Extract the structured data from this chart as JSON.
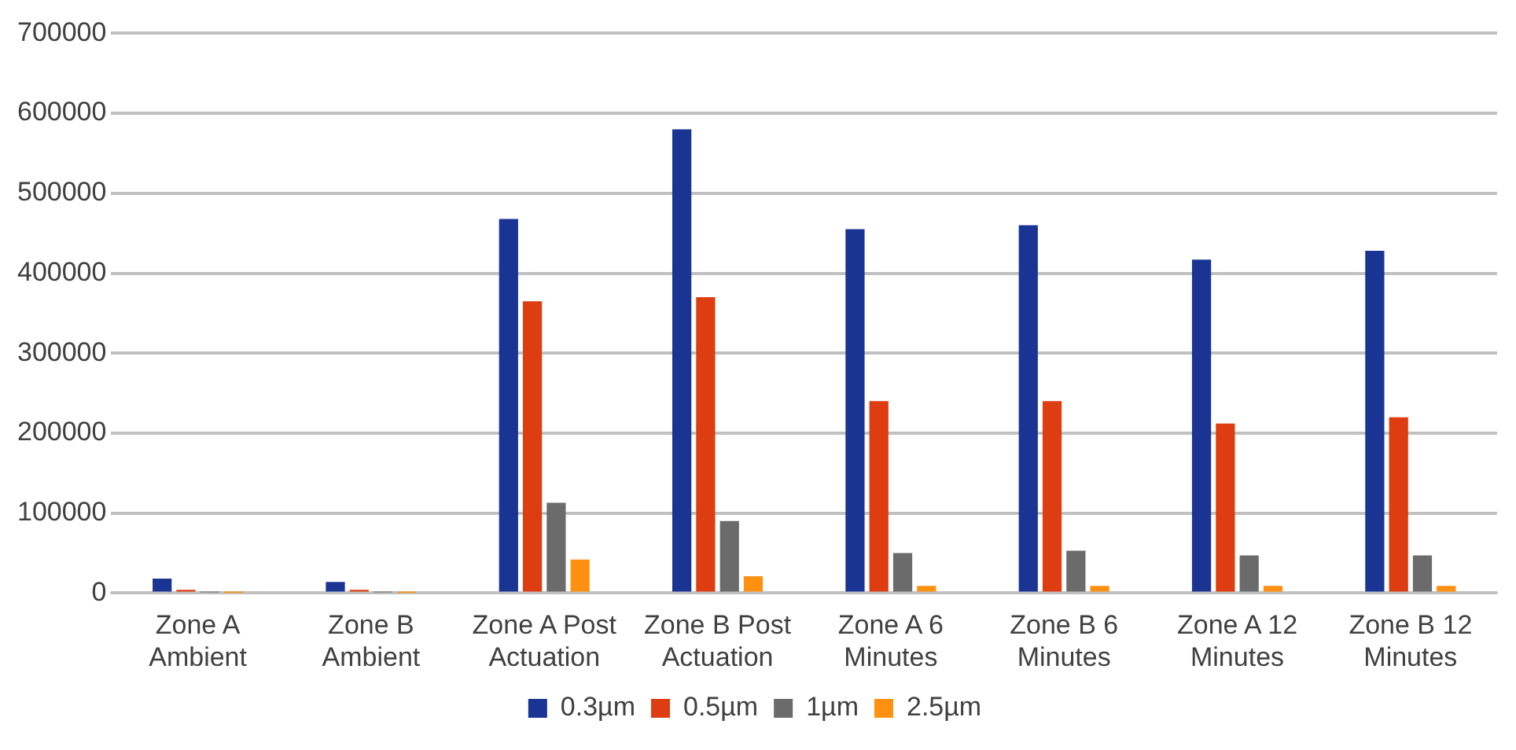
{
  "chart_data": {
    "type": "bar",
    "categories": [
      "Zone A Ambient",
      "Zone B Ambient",
      "Zone A Post Actuation",
      "Zone B Post Actuation",
      "Zone A 6 Minutes",
      "Zone B 6 Minutes",
      "Zone A 12 Minutes",
      "Zone B 12 Minutes"
    ],
    "series": [
      {
        "name": "0.3µm",
        "color": "#1a3494",
        "values": [
          18000,
          14000,
          468000,
          580000,
          455000,
          460000,
          417000,
          428000
        ]
      },
      {
        "name": "0.5µm",
        "color": "#dd3d11",
        "values": [
          4000,
          4000,
          365000,
          370000,
          240000,
          240000,
          212000,
          220000
        ]
      },
      {
        "name": "1µm",
        "color": "#6b6b6b",
        "values": [
          1000,
          1000,
          113000,
          90000,
          50000,
          53000,
          47000,
          47000
        ]
      },
      {
        "name": "2.5µm",
        "color": "#ff9010",
        "values": [
          200,
          200,
          42000,
          21000,
          9000,
          9000,
          9000,
          9000
        ]
      }
    ],
    "ylim": [
      0,
      700000
    ],
    "yticks": [
      0,
      100000,
      200000,
      300000,
      400000,
      500000,
      600000,
      700000
    ],
    "grid": "y",
    "legend": "bottom"
  }
}
